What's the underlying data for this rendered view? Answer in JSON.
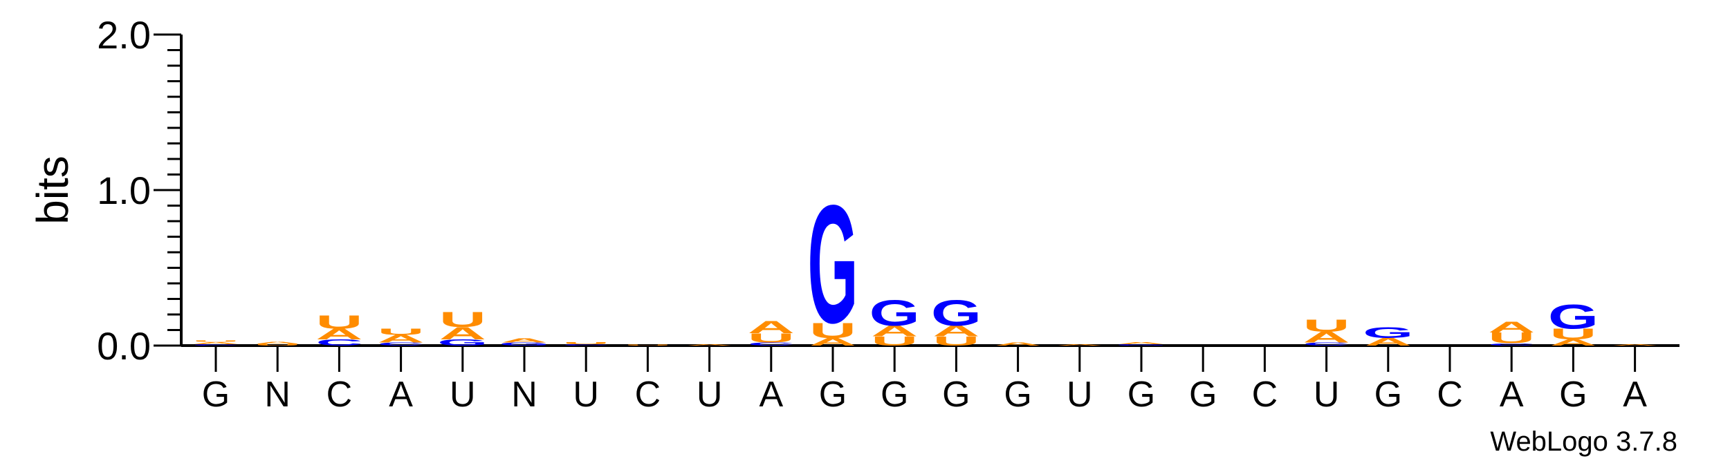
{
  "chart_data": {
    "type": "sequence-logo",
    "ylabel": "bits",
    "ylim": [
      0,
      2.0
    ],
    "yticks": [
      {
        "value": 0,
        "label": "0.0"
      },
      {
        "value": 1,
        "label": "1.0"
      },
      {
        "value": 2,
        "label": "2.0"
      }
    ],
    "consensus": [
      "G",
      "N",
      "C",
      "A",
      "U",
      "N",
      "U",
      "C",
      "U",
      "A",
      "G",
      "G",
      "G",
      "G",
      "U",
      "G",
      "G",
      "C",
      "U",
      "G",
      "C",
      "A",
      "G",
      "A"
    ],
    "colors": {
      "A": "#ff8c00",
      "U": "#ff8c00",
      "G": "#0000ff",
      "C": "#0000ff"
    },
    "stacks": [
      [
        {
          "letter": "C",
          "bits": 0.01
        },
        {
          "letter": "A",
          "bits": 0.015
        },
        {
          "letter": "U",
          "bits": 0.01
        }
      ],
      [
        {
          "letter": "U",
          "bits": 0.012
        },
        {
          "letter": "A",
          "bits": 0.015
        }
      ],
      [
        {
          "letter": "C",
          "bits": 0.04
        },
        {
          "letter": "A",
          "bits": 0.07
        },
        {
          "letter": "U",
          "bits": 0.09
        }
      ],
      [
        {
          "letter": "C",
          "bits": 0.02
        },
        {
          "letter": "A",
          "bits": 0.05
        },
        {
          "letter": "U",
          "bits": 0.04
        }
      ],
      [
        {
          "letter": "G",
          "bits": 0.04
        },
        {
          "letter": "A",
          "bits": 0.08
        },
        {
          "letter": "U",
          "bits": 0.1
        }
      ],
      [
        {
          "letter": "G",
          "bits": 0.02
        },
        {
          "letter": "A",
          "bits": 0.025
        }
      ],
      [
        {
          "letter": "C",
          "bits": 0.01
        },
        {
          "letter": "U",
          "bits": 0.015
        }
      ],
      [
        {
          "letter": "U",
          "bits": 0.005
        }
      ],
      [
        {
          "letter": "A",
          "bits": 0.008
        }
      ],
      [
        {
          "letter": "C",
          "bits": 0.02
        },
        {
          "letter": "U",
          "bits": 0.06
        },
        {
          "letter": "A",
          "bits": 0.08
        }
      ],
      [
        {
          "letter": "A",
          "bits": 0.05
        },
        {
          "letter": "U",
          "bits": 0.1
        },
        {
          "letter": "G",
          "bits": 0.78
        }
      ],
      [
        {
          "letter": "U",
          "bits": 0.06
        },
        {
          "letter": "A",
          "bits": 0.07
        },
        {
          "letter": "G",
          "bits": 0.17
        }
      ],
      [
        {
          "letter": "U",
          "bits": 0.06
        },
        {
          "letter": "A",
          "bits": 0.07
        },
        {
          "letter": "G",
          "bits": 0.17
        }
      ],
      [
        {
          "letter": "A",
          "bits": 0.02
        }
      ],
      [
        {
          "letter": "A",
          "bits": 0.01
        }
      ],
      [
        {
          "letter": "G",
          "bits": 0.01
        },
        {
          "letter": "A",
          "bits": 0.015
        }
      ],
      [],
      [],
      [
        {
          "letter": "C",
          "bits": 0.02
        },
        {
          "letter": "A",
          "bits": 0.07
        },
        {
          "letter": "U",
          "bits": 0.08
        }
      ],
      [
        {
          "letter": "A",
          "bits": 0.05
        },
        {
          "letter": "G",
          "bits": 0.07
        }
      ],
      [],
      [
        {
          "letter": "C",
          "bits": 0.015
        },
        {
          "letter": "U",
          "bits": 0.07
        },
        {
          "letter": "A",
          "bits": 0.07
        }
      ],
      [
        {
          "letter": "A",
          "bits": 0.04
        },
        {
          "letter": "U",
          "bits": 0.07
        },
        {
          "letter": "G",
          "bits": 0.16
        }
      ],
      [
        {
          "letter": "A",
          "bits": 0.01
        }
      ]
    ],
    "grid": false,
    "legend": "none"
  },
  "credit": "WebLogo 3.7.8"
}
